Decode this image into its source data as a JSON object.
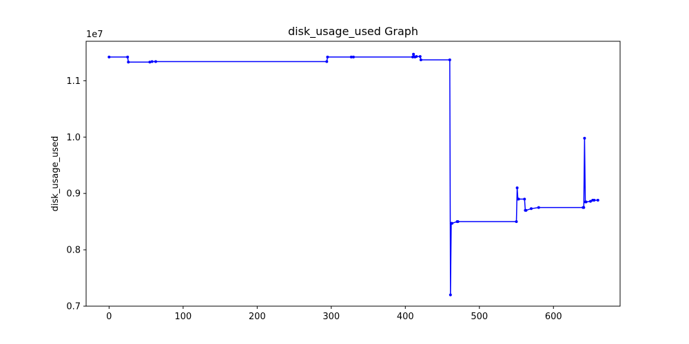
{
  "chart_data": {
    "type": "line",
    "title": "disk_usage_used Graph",
    "xlabel": "",
    "ylabel": "disk_usage_used",
    "y_multiplier_label": "1e7",
    "xlim": [
      -31,
      690
    ],
    "ylim": [
      7.0,
      11.7
    ],
    "xticks": [
      0,
      100,
      200,
      300,
      400,
      500,
      600
    ],
    "xtick_labels": [
      "0",
      "100",
      "200",
      "300",
      "400",
      "500",
      "600"
    ],
    "yticks": [
      7.0,
      8.0,
      9.0,
      10.0,
      11.0
    ],
    "ytick_labels": [
      "0.7",
      "0.8",
      "0.9",
      "1.0",
      "1.1"
    ],
    "grid": false,
    "line_color": "#0000ff",
    "series": [
      {
        "name": "",
        "x": [
          0,
          25,
          26,
          55,
          58,
          63,
          294,
          295,
          327,
          330,
          410,
          411,
          413,
          415,
          420,
          421,
          460,
          461,
          462,
          463,
          470,
          471,
          550,
          551,
          552,
          553,
          561,
          562,
          563,
          570,
          580,
          640,
          641,
          642,
          643,
          644,
          650,
          653,
          655,
          660
        ],
        "y": [
          11.42,
          11.42,
          11.33,
          11.33,
          11.34,
          11.34,
          11.34,
          11.42,
          11.42,
          11.42,
          11.42,
          11.47,
          11.42,
          11.43,
          11.43,
          11.37,
          11.37,
          7.2,
          8.47,
          8.47,
          8.5,
          8.5,
          8.5,
          9.1,
          8.9,
          8.9,
          8.9,
          8.7,
          8.7,
          8.73,
          8.75,
          8.75,
          8.75,
          9.98,
          8.85,
          8.85,
          8.86,
          8.88,
          8.88,
          8.88
        ]
      }
    ]
  }
}
